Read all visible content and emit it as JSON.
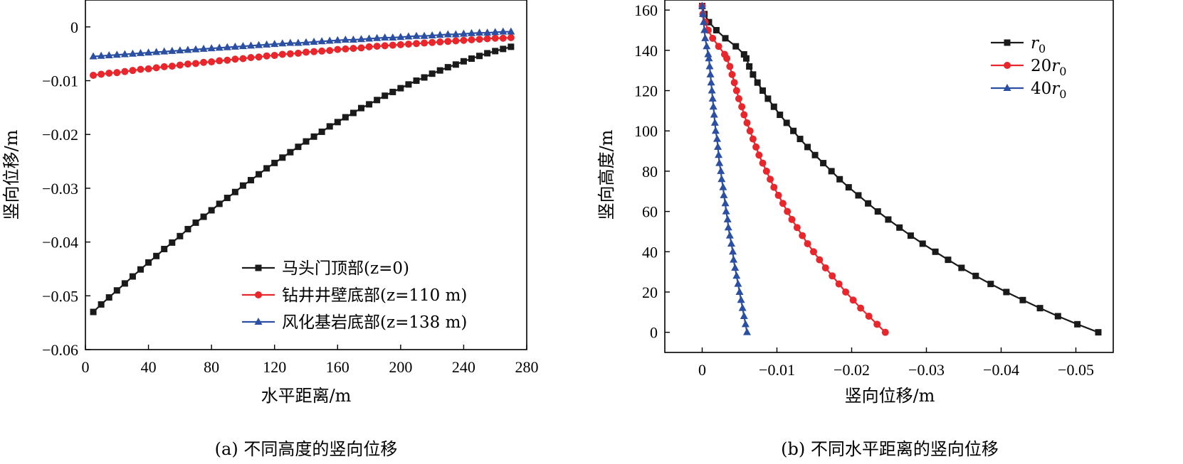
{
  "chart_data": [
    {
      "type": "line",
      "caption": "(a) 不同高度的竖向位移",
      "xlabel": "水平距离/m",
      "ylabel": "竖向位移/m",
      "xlim": [
        0,
        280
      ],
      "ylim": [
        -0.06,
        0.005
      ],
      "xticks": [
        0,
        40,
        80,
        120,
        160,
        200,
        240,
        280
      ],
      "yticks": [
        0,
        -0.01,
        -0.02,
        -0.03,
        -0.04,
        -0.05,
        -0.06
      ],
      "xtick_labels": [
        "0",
        "40",
        "80",
        "120",
        "160",
        "200",
        "240",
        "280"
      ],
      "ytick_labels": [
        "0",
        "−0.01",
        "−0.02",
        "−0.03",
        "−0.04",
        "−0.05",
        "−0.06"
      ],
      "legend_position": "bottom-right",
      "x": [
        5,
        10,
        15,
        20,
        25,
        30,
        35,
        40,
        45,
        50,
        55,
        60,
        65,
        70,
        75,
        80,
        85,
        90,
        95,
        100,
        105,
        110,
        115,
        120,
        125,
        130,
        135,
        140,
        145,
        150,
        155,
        160,
        165,
        170,
        175,
        180,
        185,
        190,
        195,
        200,
        205,
        210,
        215,
        220,
        225,
        230,
        235,
        240,
        245,
        250,
        255,
        260,
        265,
        270
      ],
      "series": [
        {
          "name": "马头门顶部(z=0)",
          "color": "#1a1a1a",
          "marker": "square",
          "values": [
            -0.053,
            -0.0516,
            -0.0503,
            -0.049,
            -0.0477,
            -0.0464,
            -0.0451,
            -0.0438,
            -0.0426,
            -0.0413,
            -0.0401,
            -0.0389,
            -0.0376,
            -0.0364,
            -0.0353,
            -0.0341,
            -0.0329,
            -0.0318,
            -0.0307,
            -0.0295,
            -0.0285,
            -0.0274,
            -0.0263,
            -0.0253,
            -0.0243,
            -0.0233,
            -0.0223,
            -0.0213,
            -0.0204,
            -0.0195,
            -0.0185,
            -0.0177,
            -0.0168,
            -0.016,
            -0.0151,
            -0.0144,
            -0.0136,
            -0.0128,
            -0.0121,
            -0.0114,
            -0.0107,
            -0.01,
            -0.0094,
            -0.0087,
            -0.0081,
            -0.0075,
            -0.007,
            -0.0064,
            -0.0059,
            -0.0054,
            -0.0049,
            -0.0045,
            -0.0041,
            -0.0037
          ]
        },
        {
          "name": "钻井井壁底部(z=110 m)",
          "color": "#e8262b",
          "marker": "circle",
          "values": [
            -0.009,
            -0.0088,
            -0.0086,
            -0.0085,
            -0.0083,
            -0.0081,
            -0.0079,
            -0.0078,
            -0.0076,
            -0.0074,
            -0.0073,
            -0.0071,
            -0.0069,
            -0.0068,
            -0.0066,
            -0.0065,
            -0.0063,
            -0.0062,
            -0.006,
            -0.0059,
            -0.0057,
            -0.0056,
            -0.0054,
            -0.0053,
            -0.0051,
            -0.005,
            -0.0049,
            -0.0047,
            -0.0046,
            -0.0045,
            -0.0044,
            -0.0042,
            -0.0041,
            -0.004,
            -0.0039,
            -0.0037,
            -0.0036,
            -0.0035,
            -0.0034,
            -0.0033,
            -0.0032,
            -0.0031,
            -0.003,
            -0.0029,
            -0.0028,
            -0.0027,
            -0.0026,
            -0.0025,
            -0.0024,
            -0.0023,
            -0.0022,
            -0.0021,
            -0.0021,
            -0.002
          ]
        },
        {
          "name": "风化基岩底部(z=138 m)",
          "color": "#2b4fa3",
          "marker": "triangle",
          "values": [
            -0.0055,
            -0.0054,
            -0.0053,
            -0.0052,
            -0.0051,
            -0.005,
            -0.0049,
            -0.0048,
            -0.0047,
            -0.0046,
            -0.0045,
            -0.0044,
            -0.0043,
            -0.0042,
            -0.0041,
            -0.004,
            -0.0039,
            -0.0038,
            -0.0037,
            -0.0036,
            -0.0035,
            -0.0034,
            -0.0033,
            -0.0032,
            -0.0031,
            -0.003,
            -0.003,
            -0.0029,
            -0.0028,
            -0.0027,
            -0.0026,
            -0.0025,
            -0.0024,
            -0.0024,
            -0.0023,
            -0.0022,
            -0.0021,
            -0.002,
            -0.002,
            -0.0019,
            -0.0018,
            -0.0017,
            -0.0017,
            -0.0016,
            -0.0015,
            -0.0014,
            -0.0014,
            -0.0013,
            -0.0012,
            -0.0011,
            -0.0011,
            -0.001,
            -0.0009,
            -0.0009
          ]
        }
      ]
    },
    {
      "type": "line",
      "caption": "(b) 不同水平距离的竖向位移",
      "xlabel": "竖向位移/m",
      "ylabel": "竖向高度/m",
      "xlim": [
        0.005,
        -0.055
      ],
      "ylim": [
        -10,
        165
      ],
      "xticks": [
        0,
        -0.01,
        -0.02,
        -0.03,
        -0.04,
        -0.05
      ],
      "yticks": [
        0,
        20,
        40,
        60,
        80,
        100,
        120,
        140,
        160
      ],
      "xtick_labels": [
        "0",
        "−0.01",
        "−0.02",
        "−0.03",
        "−0.04",
        "−0.05"
      ],
      "ytick_labels": [
        "0",
        "20",
        "40",
        "60",
        "80",
        "100",
        "120",
        "140",
        "160"
      ],
      "legend_position": "top-right",
      "y": [
        0,
        4,
        8,
        12,
        16,
        20,
        24,
        28,
        32,
        36,
        40,
        44,
        48,
        52,
        56,
        60,
        64,
        68,
        72,
        76,
        80,
        84,
        88,
        92,
        96,
        100,
        104,
        108,
        112,
        116,
        120,
        124,
        128,
        132,
        136,
        138,
        142,
        146,
        150,
        154,
        158,
        162
      ],
      "series": [
        {
          "name": "r0",
          "legend_base": "r",
          "legend_sub": "0",
          "color": "#1a1a1a",
          "marker": "square",
          "values": [
            -0.053,
            -0.0502,
            -0.0476,
            -0.0452,
            -0.0429,
            -0.0407,
            -0.0386,
            -0.0366,
            -0.0347,
            -0.0329,
            -0.0312,
            -0.0295,
            -0.0279,
            -0.0264,
            -0.0249,
            -0.0235,
            -0.0222,
            -0.0209,
            -0.0196,
            -0.0184,
            -0.0173,
            -0.0162,
            -0.0151,
            -0.0141,
            -0.0131,
            -0.0122,
            -0.0113,
            -0.0104,
            -0.0096,
            -0.0088,
            -0.0081,
            -0.0074,
            -0.0068,
            -0.0063,
            -0.0059,
            -0.0056,
            -0.0045,
            -0.0031,
            -0.0019,
            -0.0009,
            -0.0003,
            0.0
          ]
        },
        {
          "name": "20r0",
          "legend_base": "20r",
          "legend_sub": "0",
          "color": "#e8262b",
          "marker": "circle",
          "values": [
            -0.0245,
            -0.0234,
            -0.0223,
            -0.0212,
            -0.0202,
            -0.0192,
            -0.0183,
            -0.0174,
            -0.0165,
            -0.0157,
            -0.0149,
            -0.0141,
            -0.0134,
            -0.0127,
            -0.012,
            -0.0114,
            -0.0108,
            -0.0102,
            -0.0096,
            -0.0091,
            -0.0086,
            -0.0081,
            -0.0076,
            -0.0072,
            -0.0068,
            -0.0064,
            -0.006,
            -0.0056,
            -0.0053,
            -0.0049,
            -0.0046,
            -0.0043,
            -0.004,
            -0.0037,
            -0.0033,
            -0.003,
            -0.0022,
            -0.0014,
            -0.0008,
            -0.0004,
            -0.0001,
            0.0
          ]
        },
        {
          "name": "40r0",
          "legend_base": "40r",
          "legend_sub": "0",
          "color": "#2b4fa3",
          "marker": "triangle",
          "values": [
            -0.006,
            -0.0058,
            -0.0056,
            -0.0054,
            -0.0052,
            -0.005,
            -0.0048,
            -0.0046,
            -0.0044,
            -0.0042,
            -0.0041,
            -0.0039,
            -0.0037,
            -0.0035,
            -0.0034,
            -0.0032,
            -0.0031,
            -0.0029,
            -0.0028,
            -0.0026,
            -0.0025,
            -0.0023,
            -0.0022,
            -0.0021,
            -0.002,
            -0.0018,
            -0.0017,
            -0.0016,
            -0.0015,
            -0.0014,
            -0.0013,
            -0.0012,
            -0.0011,
            -0.001,
            -0.0009,
            -0.0008,
            -0.0006,
            -0.0004,
            -0.0003,
            -0.0002,
            -0.0001,
            0.0
          ]
        }
      ]
    }
  ]
}
